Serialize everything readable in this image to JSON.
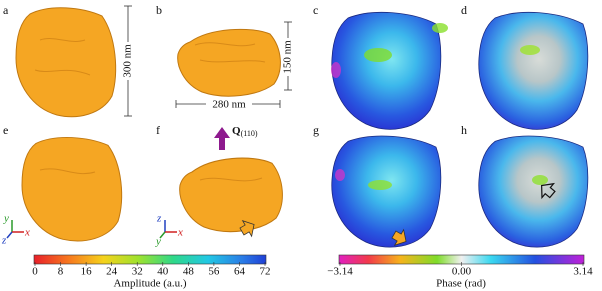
{
  "panels": {
    "labels": [
      "a",
      "b",
      "c",
      "d",
      "e",
      "f",
      "g",
      "h"
    ]
  },
  "scale_bars": {
    "a": "300 nm",
    "b_width": "280 nm",
    "b_height": "150 nm"
  },
  "q_vector": {
    "symbol": "Q",
    "subscript": "(110)"
  },
  "axes_e": {
    "vertical": "y",
    "out": "z",
    "horizontal": "x"
  },
  "axes_f": {
    "vertical": "z",
    "out": "y",
    "horizontal": "x"
  },
  "amplitude_colorbar": {
    "label": "Amplitude (a.u.)",
    "ticks": [
      0,
      8,
      16,
      24,
      32,
      40,
      48,
      56,
      64,
      72
    ]
  },
  "phase_colorbar": {
    "label": "Phase (rad)",
    "ticks": [
      {
        "value": -3.14,
        "label": "−3.14"
      },
      {
        "value": 0,
        "label": "0.00"
      },
      3.14
    ]
  }
}
